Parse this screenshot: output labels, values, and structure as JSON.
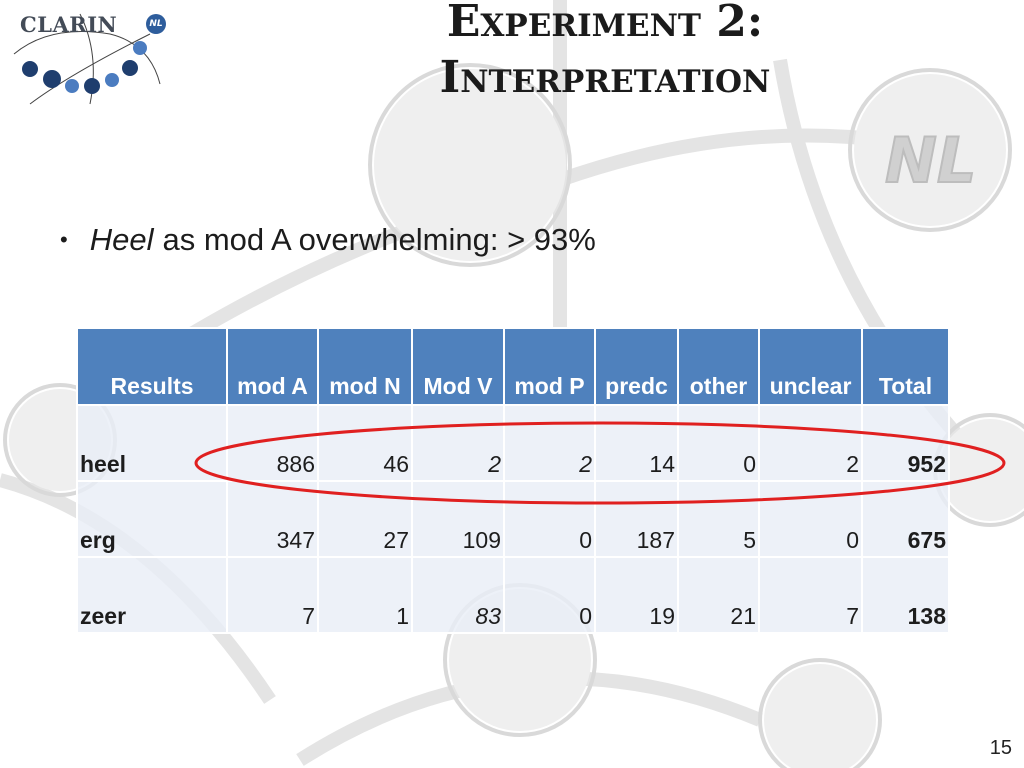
{
  "logo": {
    "text": "CLARIN",
    "badge": "NL"
  },
  "title": {
    "line1": "Experiment 2:",
    "line2": "Interpretation"
  },
  "bullet": {
    "italic": "Heel",
    "rest": "as mod A overwhelming: > 93%"
  },
  "table": {
    "headers": [
      "Results",
      "mod A",
      "mod N",
      "Mod V",
      "mod P",
      "predc",
      "other",
      "unclear",
      "Total"
    ],
    "rows": [
      {
        "label": "heel",
        "cells": [
          "886",
          "46",
          "2",
          "2",
          "14",
          "0",
          "2"
        ],
        "total": "952"
      },
      {
        "label": "erg",
        "cells": [
          "347",
          "27",
          "109",
          "0",
          "187",
          "5",
          "0"
        ],
        "total": "675"
      },
      {
        "label": "zeer",
        "cells": [
          "7",
          "1",
          "83",
          "0",
          "19",
          "21",
          "7"
        ],
        "total": "138"
      }
    ]
  },
  "highlight": {
    "color": "#e02020"
  },
  "accent": {
    "header_bg": "#4f81bd",
    "cell_bg": "#e9eef6",
    "logo_blue": "#2e5d9c",
    "logo_navy": "#1f3e6e"
  },
  "page_number": "15"
}
